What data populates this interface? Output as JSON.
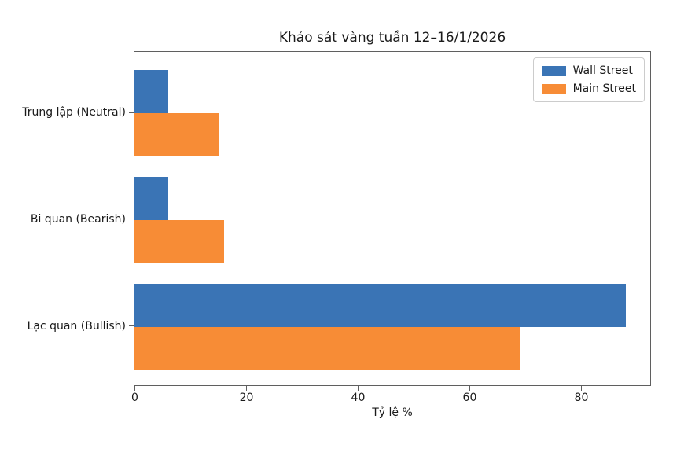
{
  "chart_data": {
    "type": "bar",
    "orientation": "horizontal",
    "title": "Khảo sát vàng tuần 12–16/1/2026",
    "xlabel": "Tỷ lệ %",
    "categories": [
      "Trung lập (Neutral)",
      "Bi quan (Bearish)",
      "Lạc quan (Bullish)"
    ],
    "categories_order": "top-to-bottom",
    "series": [
      {
        "name": "Wall Street",
        "color": "#3a74b5",
        "values": [
          6,
          6,
          88
        ]
      },
      {
        "name": "Main Street",
        "color": "#f78c36",
        "values": [
          15,
          16,
          69
        ]
      }
    ],
    "xticks": [
      0,
      20,
      40,
      60,
      80
    ],
    "xlim": [
      0,
      92.4
    ],
    "grid": false,
    "legend_position": "upper right",
    "bar_height_fraction": 0.4,
    "background_color": "#ffffff",
    "text_color": "#1a1a1a",
    "spine_color": "#5f5f5f"
  }
}
